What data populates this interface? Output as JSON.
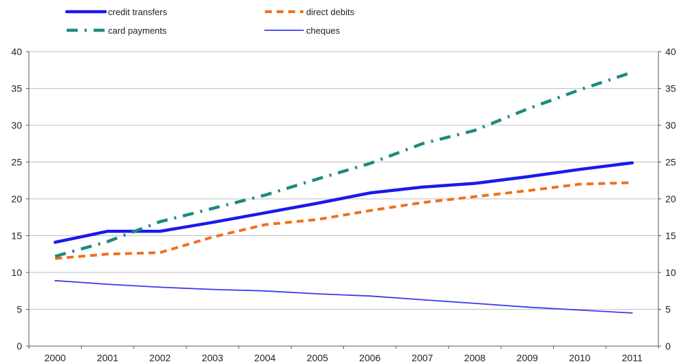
{
  "chart_data": {
    "type": "line",
    "title": "",
    "xlabel": "",
    "ylabel": "",
    "categories": [
      "2000",
      "2001",
      "2002",
      "2003",
      "2004",
      "2005",
      "2006",
      "2007",
      "2008",
      "2009",
      "2010",
      "2011"
    ],
    "ylim": [
      0,
      40
    ],
    "yticks": [
      0,
      5,
      10,
      15,
      20,
      25,
      30,
      35,
      40
    ],
    "y_axis_right": true,
    "grid": "horizontal",
    "legend_position": "top",
    "series": [
      {
        "name": "credit transfers",
        "color": "#1a1aeb",
        "style": "solid-thick",
        "values": [
          14.1,
          15.6,
          15.6,
          16.8,
          18.1,
          19.4,
          20.8,
          21.6,
          22.1,
          23.0,
          24.0,
          24.9
        ]
      },
      {
        "name": "direct debits",
        "color": "#f07020",
        "style": "dashed",
        "values": [
          11.9,
          12.5,
          12.7,
          14.8,
          16.5,
          17.2,
          18.4,
          19.5,
          20.3,
          21.1,
          22.0,
          22.2
        ]
      },
      {
        "name": "card payments",
        "color": "#1d8a80",
        "style": "dash-dot",
        "values": [
          12.2,
          14.2,
          16.9,
          18.7,
          20.5,
          22.7,
          24.8,
          27.5,
          29.3,
          32.2,
          34.8,
          37.2
        ]
      },
      {
        "name": "cheques",
        "color": "#3a3af0",
        "style": "solid-thin",
        "values": [
          8.9,
          8.4,
          8.0,
          7.7,
          7.5,
          7.1,
          6.8,
          6.3,
          5.8,
          5.3,
          4.9,
          4.5
        ]
      }
    ]
  }
}
